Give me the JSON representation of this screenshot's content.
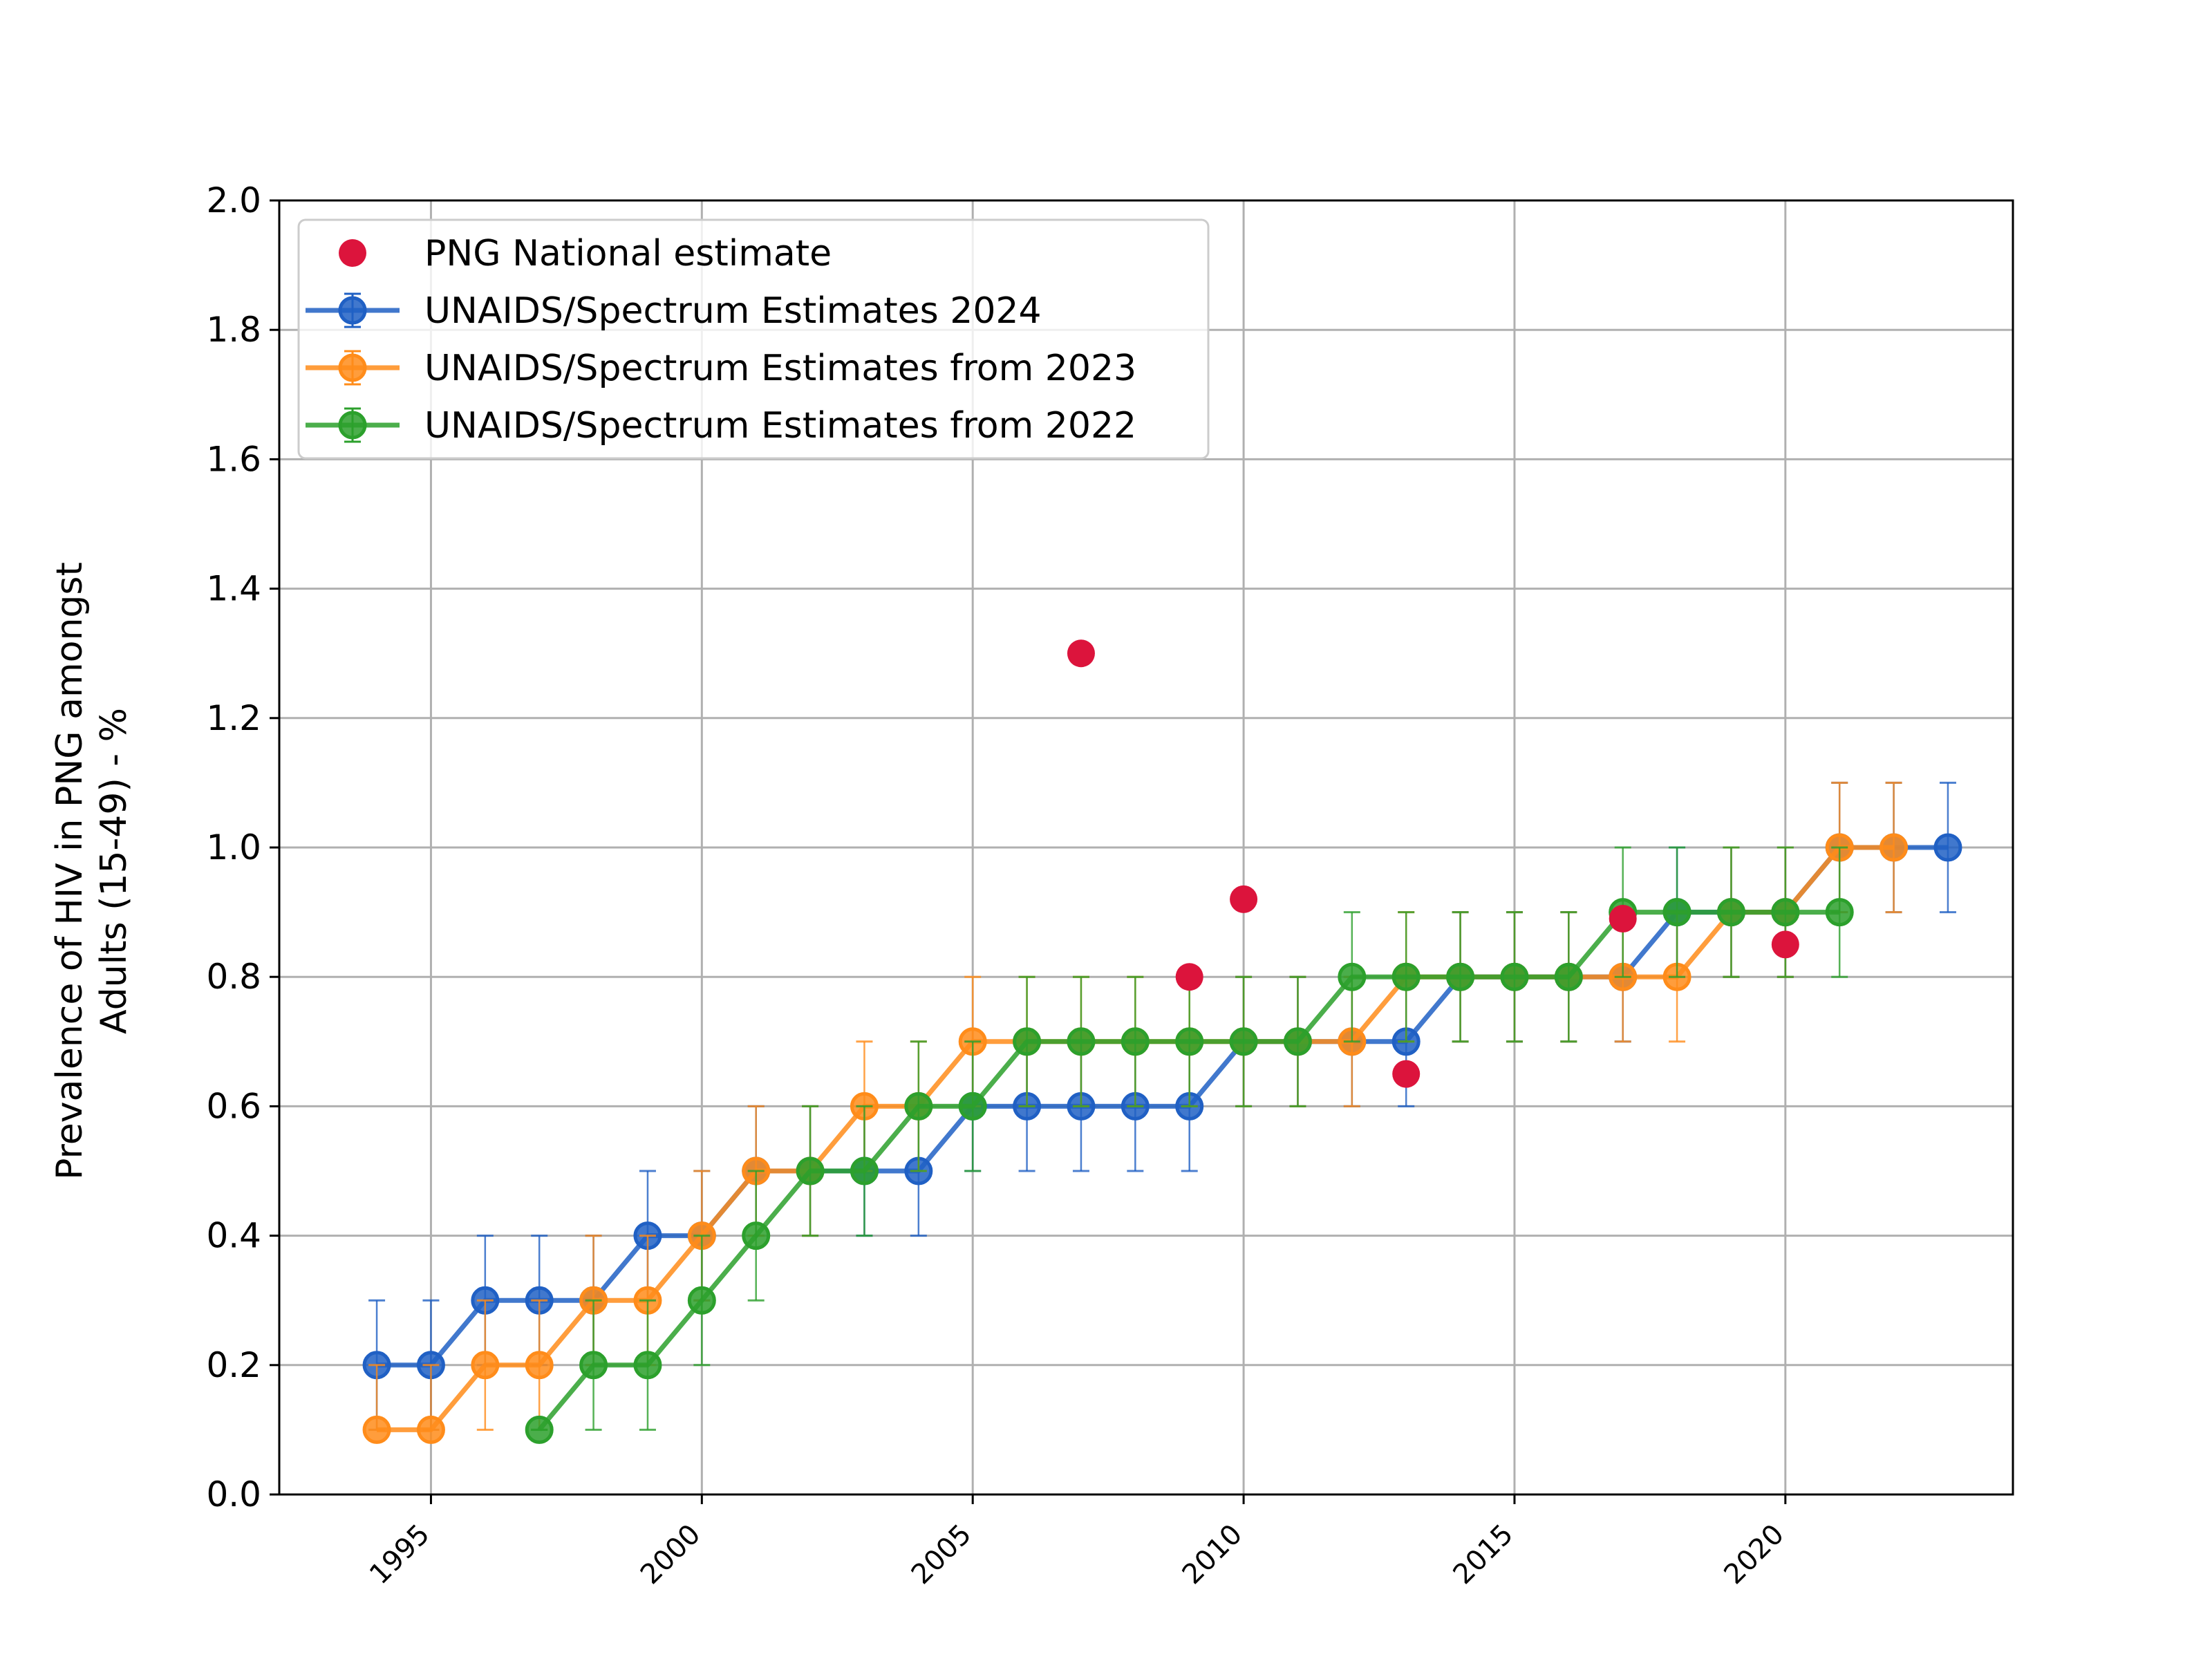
{
  "chart_data": {
    "type": "line",
    "title": "",
    "xlabel": "",
    "ylabel_lines": [
      "Prevalence of HIV in PNG amongst",
      "Adults (15-49) - %"
    ],
    "xlim": [
      1992.2,
      2024.2
    ],
    "ylim": [
      0,
      2.0
    ],
    "xticks": [
      1995,
      2000,
      2005,
      2010,
      2015,
      2020
    ],
    "yticks": [
      0.0,
      0.2,
      0.4,
      0.6,
      0.8,
      1.0,
      1.2,
      1.4,
      1.6,
      1.8,
      2.0
    ],
    "ytick_labels": [
      "0.0",
      "0.2",
      "0.4",
      "0.6",
      "0.8",
      "1.0",
      "1.2",
      "1.4",
      "1.6",
      "1.8",
      "2.0"
    ],
    "grid": true,
    "legend_position": "top-left",
    "legend": [
      "PNG National  estimate",
      "UNAIDS/Spectrum Estimates 2024",
      "UNAIDS/Spectrum Estimates from 2023",
      "UNAIDS/Spectrum Estimates from 2022"
    ],
    "scatter": {
      "name": "PNG National  estimate",
      "color": "#dc143c",
      "x": [
        2007,
        2009,
        2010,
        2013,
        2017,
        2020
      ],
      "y": [
        1.3,
        0.8,
        0.92,
        0.65,
        0.89,
        0.85
      ]
    },
    "series": [
      {
        "name": "UNAIDS/Spectrum Estimates 2024",
        "color": "#2060c4",
        "x": [
          1994,
          1995,
          1996,
          1997,
          1998,
          1999,
          2000,
          2001,
          2002,
          2003,
          2004,
          2005,
          2006,
          2007,
          2008,
          2009,
          2010,
          2011,
          2012,
          2013,
          2014,
          2015,
          2016,
          2017,
          2018,
          2019,
          2020,
          2021,
          2022,
          2023
        ],
        "y": [
          0.2,
          0.2,
          0.3,
          0.3,
          0.3,
          0.4,
          0.4,
          0.5,
          0.5,
          0.5,
          0.5,
          0.6,
          0.6,
          0.6,
          0.6,
          0.6,
          0.7,
          0.7,
          0.7,
          0.7,
          0.8,
          0.8,
          0.8,
          0.8,
          0.9,
          0.9,
          0.9,
          1.0,
          1.0,
          1.0
        ],
        "err_low": [
          0.1,
          0.1,
          0.2,
          0.2,
          0.2,
          0.3,
          0.3,
          0.4,
          0.4,
          0.4,
          0.4,
          0.5,
          0.5,
          0.5,
          0.5,
          0.5,
          0.6,
          0.6,
          0.6,
          0.6,
          0.7,
          0.7,
          0.7,
          0.7,
          0.8,
          0.8,
          0.8,
          0.9,
          0.9,
          0.9
        ],
        "err_high": [
          0.3,
          0.3,
          0.4,
          0.4,
          0.4,
          0.5,
          0.5,
          0.6,
          0.6,
          0.6,
          0.6,
          0.7,
          0.7,
          0.7,
          0.7,
          0.7,
          0.8,
          0.8,
          0.8,
          0.8,
          0.9,
          0.9,
          0.9,
          0.9,
          1.0,
          1.0,
          1.0,
          1.1,
          1.1,
          1.1
        ]
      },
      {
        "name": "UNAIDS/Spectrum Estimates from 2023",
        "color": "#ff8c1a",
        "x": [
          1994,
          1995,
          1996,
          1997,
          1998,
          1999,
          2000,
          2001,
          2002,
          2003,
          2004,
          2005,
          2006,
          2007,
          2008,
          2009,
          2010,
          2011,
          2012,
          2013,
          2014,
          2015,
          2016,
          2017,
          2018,
          2019,
          2020,
          2021,
          2022
        ],
        "y": [
          0.1,
          0.1,
          0.2,
          0.2,
          0.3,
          0.3,
          0.4,
          0.5,
          0.5,
          0.6,
          0.6,
          0.7,
          0.7,
          0.7,
          0.7,
          0.7,
          0.7,
          0.7,
          0.7,
          0.8,
          0.8,
          0.8,
          0.8,
          0.8,
          0.8,
          0.9,
          0.9,
          1.0,
          1.0
        ],
        "err_low": [
          0.1,
          0.1,
          0.1,
          0.1,
          0.2,
          0.2,
          0.3,
          0.4,
          0.4,
          0.5,
          0.5,
          0.6,
          0.6,
          0.6,
          0.6,
          0.6,
          0.6,
          0.6,
          0.6,
          0.7,
          0.7,
          0.7,
          0.7,
          0.7,
          0.7,
          0.8,
          0.8,
          0.9,
          0.9
        ],
        "err_high": [
          0.2,
          0.2,
          0.3,
          0.3,
          0.4,
          0.4,
          0.5,
          0.6,
          0.6,
          0.7,
          0.7,
          0.8,
          0.8,
          0.8,
          0.8,
          0.8,
          0.8,
          0.8,
          0.8,
          0.9,
          0.9,
          0.9,
          0.9,
          0.9,
          0.9,
          1.0,
          1.0,
          1.1,
          1.1
        ]
      },
      {
        "name": "UNAIDS/Spectrum Estimates from 2022",
        "color": "#2ca02c",
        "x": [
          1997,
          1998,
          1999,
          2000,
          2001,
          2002,
          2003,
          2004,
          2005,
          2006,
          2007,
          2008,
          2009,
          2010,
          2011,
          2012,
          2013,
          2014,
          2015,
          2016,
          2017,
          2018,
          2019,
          2020,
          2021
        ],
        "y": [
          0.1,
          0.2,
          0.2,
          0.3,
          0.4,
          0.5,
          0.5,
          0.6,
          0.6,
          0.7,
          0.7,
          0.7,
          0.7,
          0.7,
          0.7,
          0.8,
          0.8,
          0.8,
          0.8,
          0.8,
          0.9,
          0.9,
          0.9,
          0.9,
          0.9
        ],
        "err_low": [
          0.1,
          0.1,
          0.1,
          0.2,
          0.3,
          0.4,
          0.4,
          0.5,
          0.5,
          0.6,
          0.6,
          0.6,
          0.6,
          0.6,
          0.6,
          0.7,
          0.7,
          0.7,
          0.7,
          0.7,
          0.8,
          0.8,
          0.8,
          0.8,
          0.8
        ],
        "err_high": [
          0.1,
          0.3,
          0.3,
          0.4,
          0.5,
          0.6,
          0.6,
          0.7,
          0.7,
          0.8,
          0.8,
          0.8,
          0.8,
          0.8,
          0.8,
          0.9,
          0.9,
          0.9,
          0.9,
          0.9,
          1.0,
          1.0,
          1.0,
          1.0,
          1.0
        ]
      }
    ]
  }
}
